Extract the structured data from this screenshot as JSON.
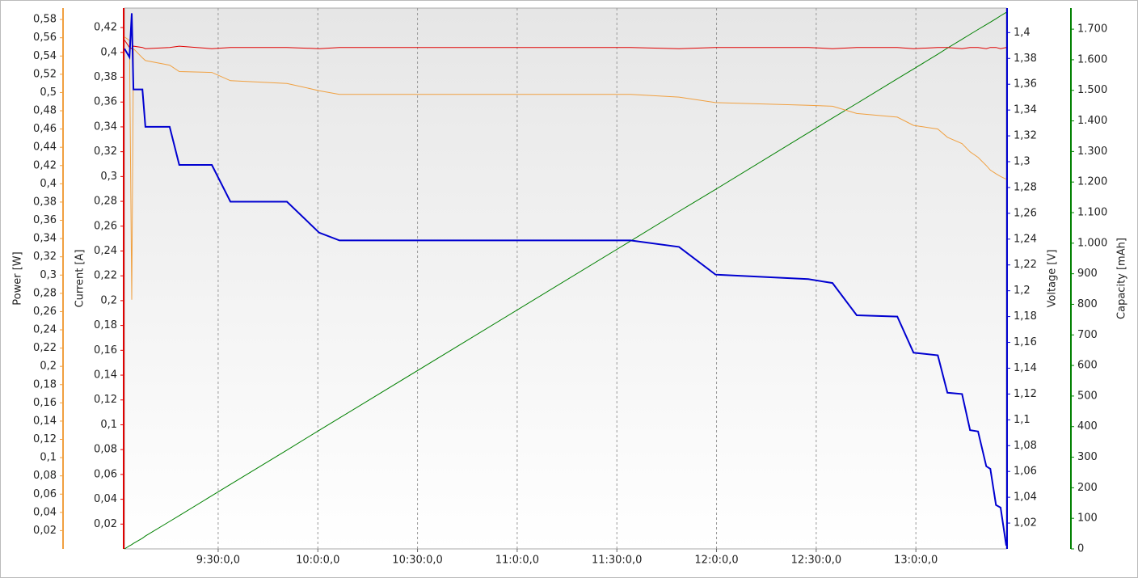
{
  "chart_data": {
    "type": "line",
    "grid": true,
    "xlim": [
      541.8,
      807.2
    ],
    "xticks": [
      {
        "value": 570,
        "label": "9:30:0,0"
      },
      {
        "value": 600,
        "label": "10:0:0,0"
      },
      {
        "value": 630,
        "label": "10:30:0,0"
      },
      {
        "value": 660,
        "label": "11:0:0,0"
      },
      {
        "value": 690,
        "label": "11:30:0,0"
      },
      {
        "value": 720,
        "label": "12:0:0,0"
      },
      {
        "value": 750,
        "label": "12:30:0,0"
      },
      {
        "value": 780,
        "label": "13:0:0,0"
      }
    ],
    "x": [
      541.8,
      543.3,
      544.0,
      544.5,
      547.2,
      548.1,
      555.4,
      558.3,
      568.1,
      573.7,
      590.7,
      600.4,
      606.5,
      694.1,
      708.7,
      719.7,
      747.6,
      754.9,
      762.2,
      774.4,
      779.3,
      786.6,
      789.5,
      793.9,
      796.3,
      798.7,
      801.2,
      802.4,
      804.1,
      805.5,
      807.2
    ],
    "axes": [
      {
        "id": "power",
        "label": "Power [W]",
        "color": "#f0a040",
        "lim": [
          0,
          0.5925
        ],
        "ticks": [
          {
            "value": 0.02,
            "label": "0,02"
          },
          {
            "value": 0.04,
            "label": "0,04"
          },
          {
            "value": 0.06,
            "label": "0,06"
          },
          {
            "value": 0.08,
            "label": "0,08"
          },
          {
            "value": 0.1,
            "label": "0,1"
          },
          {
            "value": 0.12,
            "label": "0,12"
          },
          {
            "value": 0.14,
            "label": "0,14"
          },
          {
            "value": 0.16,
            "label": "0,16"
          },
          {
            "value": 0.18,
            "label": "0,18"
          },
          {
            "value": 0.2,
            "label": "0,2"
          },
          {
            "value": 0.22,
            "label": "0,22"
          },
          {
            "value": 0.24,
            "label": "0,24"
          },
          {
            "value": 0.26,
            "label": "0,26"
          },
          {
            "value": 0.28,
            "label": "0,28"
          },
          {
            "value": 0.3,
            "label": "0,3"
          },
          {
            "value": 0.32,
            "label": "0,32"
          },
          {
            "value": 0.34,
            "label": "0,34"
          },
          {
            "value": 0.36,
            "label": "0,36"
          },
          {
            "value": 0.38,
            "label": "0,38"
          },
          {
            "value": 0.4,
            "label": "0,4"
          },
          {
            "value": 0.42,
            "label": "0,42"
          },
          {
            "value": 0.44,
            "label": "0,44"
          },
          {
            "value": 0.46,
            "label": "0,46"
          },
          {
            "value": 0.48,
            "label": "0,48"
          },
          {
            "value": 0.5,
            "label": "0,5"
          },
          {
            "value": 0.52,
            "label": "0,52"
          },
          {
            "value": 0.54,
            "label": "0,54"
          },
          {
            "value": 0.56,
            "label": "0,56"
          },
          {
            "value": 0.58,
            "label": "0,58"
          }
        ]
      },
      {
        "id": "current",
        "label": "Current [A]",
        "color": "#e00000",
        "lim": [
          0,
          0.4357
        ],
        "ticks": [
          {
            "value": 0.02,
            "label": "0,02"
          },
          {
            "value": 0.04,
            "label": "0,04"
          },
          {
            "value": 0.06,
            "label": "0,06"
          },
          {
            "value": 0.08,
            "label": "0,08"
          },
          {
            "value": 0.1,
            "label": "0,1"
          },
          {
            "value": 0.12,
            "label": "0,12"
          },
          {
            "value": 0.14,
            "label": "0,14"
          },
          {
            "value": 0.16,
            "label": "0,16"
          },
          {
            "value": 0.18,
            "label": "0,18"
          },
          {
            "value": 0.2,
            "label": "0,2"
          },
          {
            "value": 0.22,
            "label": "0,22"
          },
          {
            "value": 0.24,
            "label": "0,24"
          },
          {
            "value": 0.26,
            "label": "0,26"
          },
          {
            "value": 0.28,
            "label": "0,28"
          },
          {
            "value": 0.3,
            "label": "0,3"
          },
          {
            "value": 0.32,
            "label": "0,32"
          },
          {
            "value": 0.34,
            "label": "0,34"
          },
          {
            "value": 0.36,
            "label": "0,36"
          },
          {
            "value": 0.38,
            "label": "0,38"
          },
          {
            "value": 0.4,
            "label": "0,4"
          },
          {
            "value": 0.42,
            "label": "0,42"
          }
        ]
      },
      {
        "id": "voltage",
        "label": "Voltage [V]",
        "color": "#0000d0",
        "lim": [
          1.0,
          1.419
        ],
        "ticks": [
          {
            "value": 1.02,
            "label": "1,02"
          },
          {
            "value": 1.04,
            "label": "1,04"
          },
          {
            "value": 1.06,
            "label": "1,06"
          },
          {
            "value": 1.08,
            "label": "1,08"
          },
          {
            "value": 1.1,
            "label": "1,1"
          },
          {
            "value": 1.12,
            "label": "1,12"
          },
          {
            "value": 1.14,
            "label": "1,14"
          },
          {
            "value": 1.16,
            "label": "1,16"
          },
          {
            "value": 1.18,
            "label": "1,18"
          },
          {
            "value": 1.2,
            "label": "1,2"
          },
          {
            "value": 1.22,
            "label": "1,22"
          },
          {
            "value": 1.24,
            "label": "1,24"
          },
          {
            "value": 1.26,
            "label": "1,26"
          },
          {
            "value": 1.28,
            "label": "1,28"
          },
          {
            "value": 1.3,
            "label": "1,3"
          },
          {
            "value": 1.32,
            "label": "1,32"
          },
          {
            "value": 1.34,
            "label": "1,34"
          },
          {
            "value": 1.36,
            "label": "1,36"
          },
          {
            "value": 1.38,
            "label": "1,38"
          },
          {
            "value": 1.4,
            "label": "1,4"
          }
        ]
      },
      {
        "id": "capacity",
        "label": "Capacity [mAh]",
        "color": "#008000",
        "lim": [
          0,
          1769
        ],
        "ticks": [
          0,
          100,
          200,
          300,
          400,
          500,
          600,
          700,
          800,
          900,
          {
            "value": 1000,
            "label": "1.000"
          },
          {
            "value": 1100,
            "label": "1.100"
          },
          {
            "value": 1200,
            "label": "1.200"
          },
          {
            "value": 1300,
            "label": "1.300"
          },
          {
            "value": 1400,
            "label": "1.400"
          },
          {
            "value": 1500,
            "label": "1.500"
          },
          {
            "value": 1600,
            "label": "1.600"
          },
          {
            "value": 1700,
            "label": "1.700"
          }
        ]
      }
    ],
    "series": [
      {
        "axis": "capacity",
        "color": "#008000",
        "values": [
          0,
          10,
          14,
          18,
          35,
          42,
          90,
          109,
          174,
          211,
          323,
          388,
          428,
          1007,
          1104,
          1176,
          1361,
          1409,
          1457,
          1538,
          1570,
          1618,
          1638,
          1667,
          1683,
          1699,
          1715,
          1723,
          1734,
          1744,
          1755
        ]
      },
      {
        "axis": "power",
        "color": "#f0a040",
        "values": [
          0.561,
          0.557,
          0.273,
          0.548,
          0.538,
          0.535,
          0.53,
          0.523,
          0.522,
          0.513,
          0.51,
          0.502,
          0.498,
          0.498,
          0.495,
          0.489,
          0.486,
          0.485,
          0.477,
          0.473,
          0.464,
          0.46,
          0.451,
          0.444,
          0.435,
          0.429,
          0.42,
          0.415,
          0.411,
          0.408,
          0.405
        ]
      },
      {
        "axis": "current",
        "color": "#e00000",
        "values": [
          0.41,
          0.404,
          0.403,
          0.405,
          0.404,
          0.403,
          0.404,
          0.405,
          0.403,
          0.404,
          0.404,
          0.403,
          0.404,
          0.404,
          0.403,
          0.404,
          0.404,
          0.403,
          0.404,
          0.404,
          0.403,
          0.404,
          0.404,
          0.403,
          0.404,
          0.404,
          0.403,
          0.404,
          0.404,
          0.403,
          0.404
        ]
      },
      {
        "axis": "voltage",
        "color": "#0000d0",
        "values": [
          1.3875,
          1.381,
          1.415,
          1.356,
          1.356,
          1.327,
          1.327,
          1.2975,
          1.2975,
          1.269,
          1.269,
          1.245,
          1.239,
          1.239,
          1.234,
          1.2125,
          1.209,
          1.206,
          1.181,
          1.18,
          1.152,
          1.15,
          1.121,
          1.12,
          1.092,
          1.091,
          1.064,
          1.062,
          1.034,
          1.032,
          1.0025
        ]
      }
    ]
  }
}
